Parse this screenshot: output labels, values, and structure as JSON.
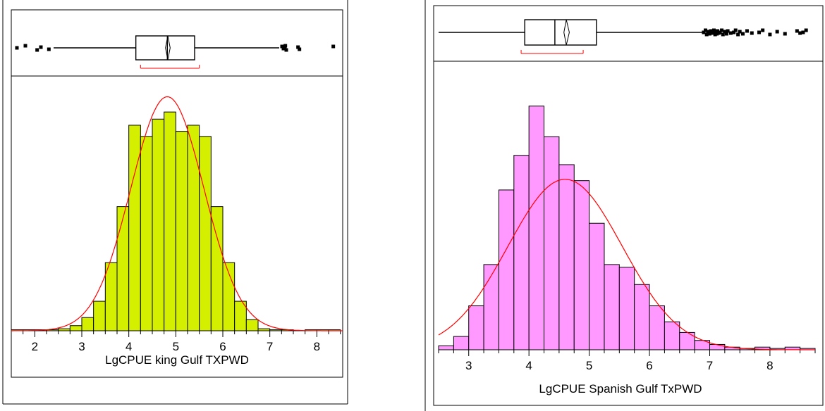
{
  "chart_data": [
    {
      "type": "bar",
      "subtype": "histogram-with-outlier-boxplot",
      "xlabel": "LgCPUE king Gulf TXPWD",
      "xlim": [
        1.5,
        8.55
      ],
      "x_ticks": [
        2,
        3,
        4,
        5,
        6,
        7,
        8
      ],
      "bin_width": 0.25,
      "bin_start": 1.5,
      "bar_color": "#d4f000",
      "values": [
        0.5,
        0.5,
        0.5,
        0.5,
        1,
        2.5,
        6.5,
        14.5,
        33.5,
        61,
        101,
        95.5,
        104,
        107.5,
        98,
        101,
        95.5,
        61,
        33.5,
        14.5,
        5.5,
        1,
        0.5,
        0.5,
        0,
        0.5,
        0.5,
        0.5
      ],
      "ylim": [
        0,
        120
      ],
      "normal_curve": {
        "color": "#ff0000",
        "mean": 4.82,
        "sd": 0.78,
        "peak": 115
      },
      "boxplot": {
        "q1": 4.15,
        "median": 4.82,
        "q3": 5.4,
        "mean": 4.83,
        "mean_ci": [
          4.78,
          4.88
        ],
        "whisker_low": 2.4,
        "whisker_high": 7.2,
        "shortest_half": [
          4.25,
          5.5
        ],
        "outliers": [
          1.62,
          1.8,
          2.05,
          2.13,
          2.3,
          7.26,
          7.29,
          7.32,
          7.33,
          7.35,
          7.6,
          7.63,
          8.35
        ]
      }
    },
    {
      "type": "bar",
      "subtype": "histogram-with-outlier-boxplot",
      "xlabel": "LgCPUE Spanish Gulf TxPWD",
      "xlim": [
        2.5,
        8.75
      ],
      "x_ticks": [
        3,
        4,
        5,
        6,
        7,
        8
      ],
      "bin_width": 0.25,
      "bin_start": 2.5,
      "bar_color": "#ff99ff",
      "values": [
        3,
        10,
        33,
        64,
        120,
        146,
        183,
        160,
        139,
        127,
        95,
        64,
        62,
        49,
        33,
        21,
        13,
        7,
        4,
        2,
        1,
        2,
        1,
        2,
        1
      ],
      "ylim": [
        0,
        195
      ],
      "normal_curve": {
        "color": "#ff0000",
        "mean": 4.6,
        "sd": 0.95,
        "peak": 128
      },
      "boxplot": {
        "q1": 3.93,
        "median": 4.43,
        "q3": 5.12,
        "mean": 4.62,
        "mean_ci": [
          4.58,
          4.67
        ],
        "whisker_low": 2.5,
        "whisker_high": 6.9,
        "shortest_half": [
          3.87,
          4.9
        ],
        "outliers": [
          6.9,
          6.93,
          6.95,
          6.97,
          7.0,
          7.02,
          7.04,
          7.05,
          7.07,
          7.09,
          7.1,
          7.12,
          7.13,
          7.15,
          7.17,
          7.2,
          7.22,
          7.25,
          7.28,
          7.3,
          7.35,
          7.4,
          7.43,
          7.47,
          7.5,
          7.55,
          7.62,
          7.7,
          7.82,
          7.88,
          8.0,
          8.12,
          8.25,
          8.45,
          8.5,
          8.55,
          8.6
        ]
      }
    }
  ]
}
